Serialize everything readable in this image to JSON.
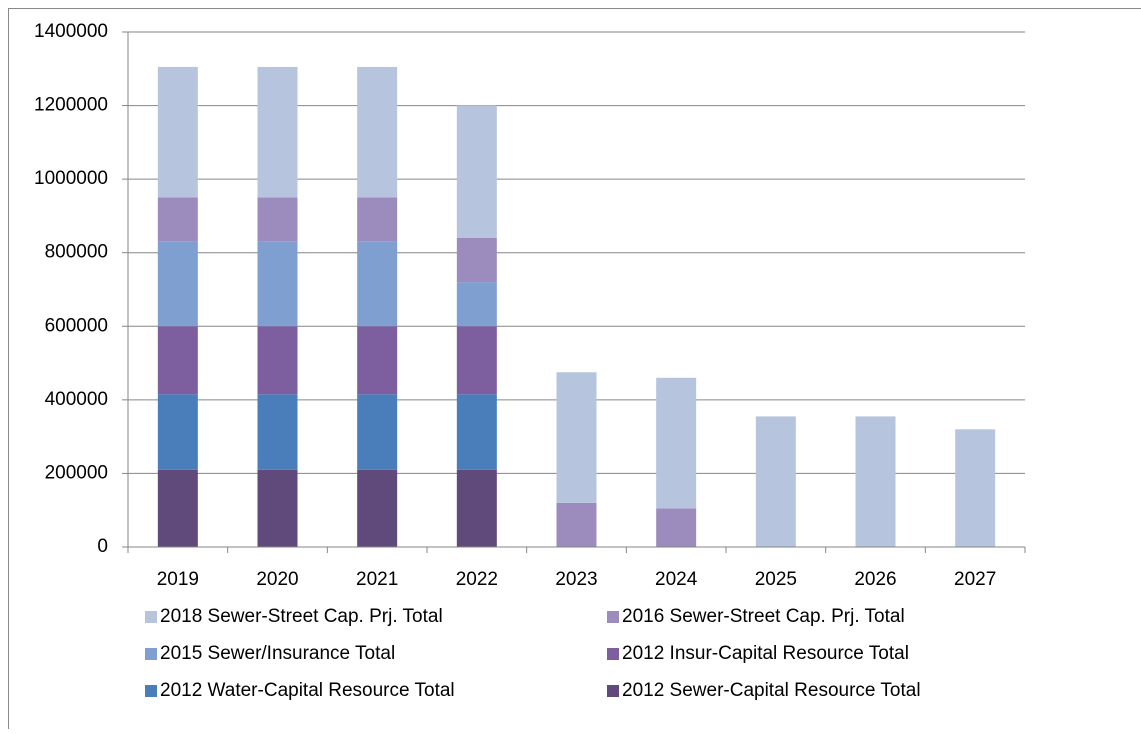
{
  "chart_data": {
    "type": "stacked_bar",
    "categories": [
      "2019",
      "2020",
      "2021",
      "2022",
      "2023",
      "2024",
      "2025",
      "2026",
      "2027"
    ],
    "series": [
      {
        "name": "2018 Sewer-Street Cap. Prj. Total",
        "color": "#b7c4de",
        "values": [
          355000,
          355000,
          355000,
          360000,
          355000,
          355000,
          355000,
          355000,
          320000
        ]
      },
      {
        "name": "2016 Sewer-Street Cap. Prj. Total",
        "color": "#9c8cbd",
        "values": [
          120000,
          120000,
          120000,
          120000,
          120000,
          105000,
          null,
          null,
          null
        ]
      },
      {
        "name": "2015 Sewer/Insurance Total",
        "color": "#7e9fcf",
        "values": [
          230000,
          230000,
          230000,
          120000,
          null,
          null,
          null,
          null,
          null
        ]
      },
      {
        "name": "2012 Insur-Capital Resource Total",
        "color": "#7d5fa0",
        "values": [
          185000,
          185000,
          185000,
          185000,
          null,
          null,
          null,
          null,
          null
        ]
      },
      {
        "name": "2012 Water-Capital Resource Total",
        "color": "#4a7ebb",
        "values": [
          205000,
          205000,
          205000,
          205000,
          null,
          null,
          null,
          null,
          null
        ]
      },
      {
        "name": "2012 Sewer-Capital Resource Total",
        "color": "#604a7b",
        "values": [
          210000,
          210000,
          210000,
          210000,
          null,
          null,
          null,
          null,
          null
        ]
      }
    ],
    "ylim": [
      0,
      1400000
    ],
    "yticks": [
      0,
      200000,
      400000,
      600000,
      800000,
      1000000,
      1200000,
      1400000
    ],
    "grid": true
  }
}
